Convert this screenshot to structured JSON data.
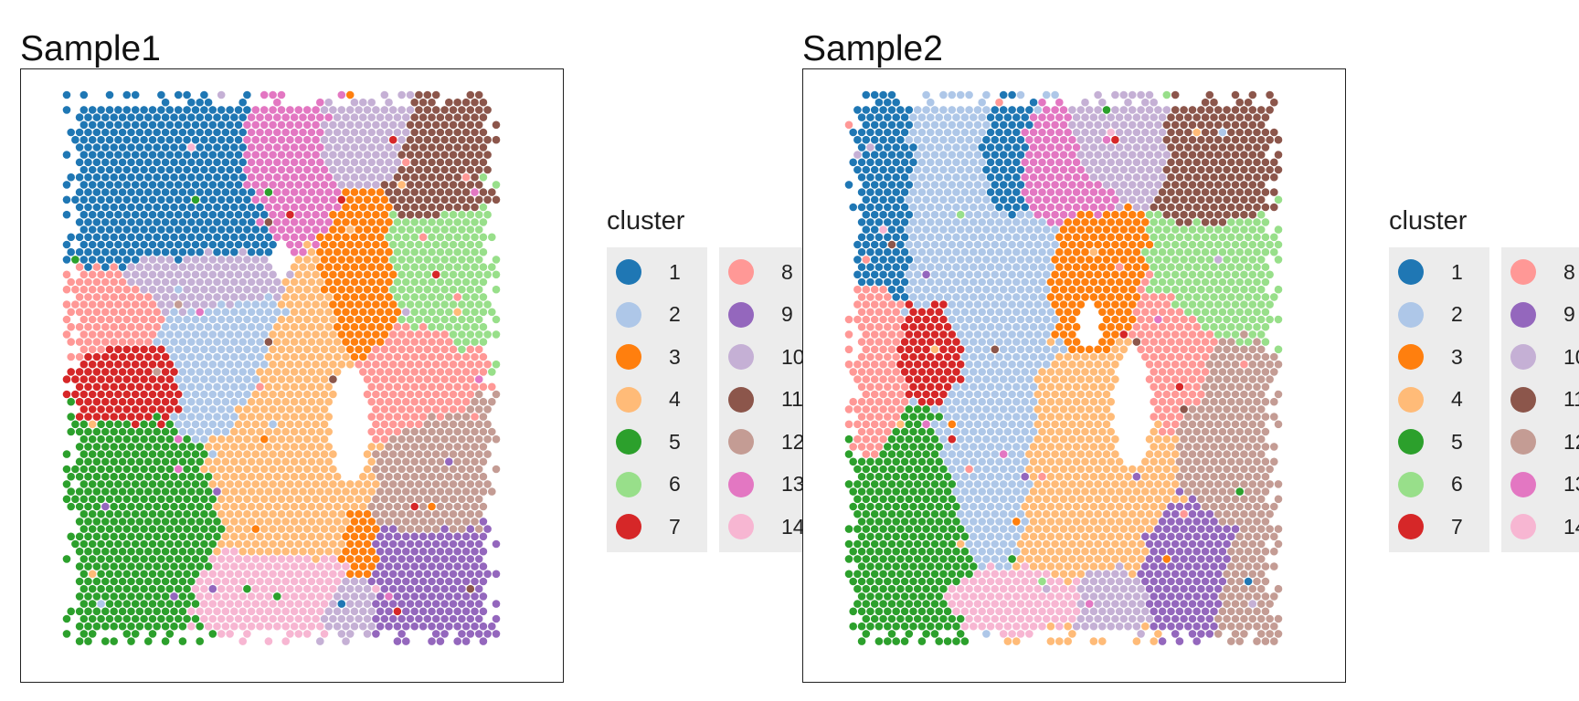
{
  "legend_title": "cluster",
  "clusters": [
    {
      "label": "1",
      "color": "#1f77b4"
    },
    {
      "label": "2",
      "color": "#aec7e8"
    },
    {
      "label": "3",
      "color": "#ff7f0e"
    },
    {
      "label": "4",
      "color": "#ffbb78"
    },
    {
      "label": "5",
      "color": "#2ca02c"
    },
    {
      "label": "6",
      "color": "#98df8a"
    },
    {
      "label": "7",
      "color": "#d62728"
    },
    {
      "label": "8",
      "color": "#ff9896"
    },
    {
      "label": "9",
      "color": "#9467bd"
    },
    {
      "label": "10",
      "color": "#c5b0d5"
    },
    {
      "label": "11",
      "color": "#8c564b"
    },
    {
      "label": "12",
      "color": "#c49c94"
    },
    {
      "label": "13",
      "color": "#e377c2"
    },
    {
      "label": "14",
      "color": "#f7b6d2"
    }
  ],
  "chart_data": [
    {
      "type": "scatter",
      "title": "Sample1",
      "xlabel": "",
      "ylabel": "",
      "grid": false,
      "legend": "right",
      "regions": [
        {
          "cluster": "1",
          "center": [
            0.24,
            0.14
          ],
          "radius": [
            0.18,
            0.13
          ]
        },
        {
          "cluster": "13",
          "center": [
            0.52,
            0.12
          ],
          "radius": [
            0.1,
            0.09
          ]
        },
        {
          "cluster": "10",
          "center": [
            0.68,
            0.1
          ],
          "radius": [
            0.1,
            0.06
          ]
        },
        {
          "cluster": "3",
          "center": [
            0.7,
            0.32
          ],
          "radius": [
            0.06,
            0.14
          ]
        },
        {
          "cluster": "11",
          "center": [
            0.84,
            0.16
          ],
          "radius": [
            0.08,
            0.08
          ]
        },
        {
          "cluster": "6",
          "center": [
            0.85,
            0.3
          ],
          "radius": [
            0.1,
            0.1
          ]
        },
        {
          "cluster": "10",
          "center": [
            0.3,
            0.35
          ],
          "radius": [
            0.14,
            0.05
          ]
        },
        {
          "cluster": "8",
          "center": [
            0.12,
            0.4
          ],
          "radius": [
            0.1,
            0.06
          ]
        },
        {
          "cluster": "2",
          "center": [
            0.35,
            0.47
          ],
          "radius": [
            0.13,
            0.12
          ]
        },
        {
          "cluster": "7",
          "center": [
            0.18,
            0.52
          ],
          "radius": [
            0.1,
            0.07
          ]
        },
        {
          "cluster": "4",
          "center": [
            0.52,
            0.62
          ],
          "radius": [
            0.13,
            0.18
          ]
        },
        {
          "cluster": "8",
          "center": [
            0.78,
            0.52
          ],
          "radius": [
            0.09,
            0.09
          ]
        },
        {
          "cluster": "12",
          "center": [
            0.84,
            0.7
          ],
          "radius": [
            0.08,
            0.1
          ]
        },
        {
          "cluster": "5",
          "center": [
            0.18,
            0.76
          ],
          "radius": [
            0.11,
            0.14
          ]
        },
        {
          "cluster": "9",
          "center": [
            0.84,
            0.87
          ],
          "radius": [
            0.09,
            0.08
          ]
        },
        {
          "cluster": "14",
          "center": [
            0.5,
            0.9
          ],
          "radius": [
            0.14,
            0.05
          ]
        },
        {
          "cluster": "10",
          "center": [
            0.65,
            0.92
          ],
          "radius": [
            0.05,
            0.04
          ]
        },
        {
          "cluster": "3",
          "center": [
            0.68,
            0.82
          ],
          "radius": [
            0.03,
            0.05
          ]
        }
      ]
    },
    {
      "type": "scatter",
      "title": "Sample2",
      "xlabel": "",
      "ylabel": "",
      "grid": false,
      "legend": "right",
      "regions": [
        {
          "cluster": "1",
          "center": [
            0.08,
            0.25
          ],
          "radius": [
            0.07,
            0.2
          ]
        },
        {
          "cluster": "2",
          "center": [
            0.28,
            0.3
          ],
          "radius": [
            0.16,
            0.24
          ]
        },
        {
          "cluster": "1",
          "center": [
            0.36,
            0.14
          ],
          "radius": [
            0.06,
            0.12
          ]
        },
        {
          "cluster": "13",
          "center": [
            0.48,
            0.14
          ],
          "radius": [
            0.1,
            0.08
          ]
        },
        {
          "cluster": "10",
          "center": [
            0.6,
            0.1
          ],
          "radius": [
            0.1,
            0.06
          ]
        },
        {
          "cluster": "11",
          "center": [
            0.85,
            0.14
          ],
          "radius": [
            0.08,
            0.1
          ]
        },
        {
          "cluster": "6",
          "center": [
            0.86,
            0.33
          ],
          "radius": [
            0.1,
            0.1
          ]
        },
        {
          "cluster": "3",
          "center": [
            0.56,
            0.34
          ],
          "radius": [
            0.08,
            0.1
          ]
        },
        {
          "cluster": "8",
          "center": [
            0.07,
            0.45
          ],
          "radius": [
            0.06,
            0.2
          ]
        },
        {
          "cluster": "7",
          "center": [
            0.2,
            0.45
          ],
          "radius": [
            0.1,
            0.1
          ]
        },
        {
          "cluster": "2",
          "center": [
            0.32,
            0.65
          ],
          "radius": [
            0.12,
            0.16
          ]
        },
        {
          "cluster": "8",
          "center": [
            0.76,
            0.48
          ],
          "radius": [
            0.08,
            0.1
          ]
        },
        {
          "cluster": "12",
          "center": [
            0.88,
            0.62
          ],
          "radius": [
            0.08,
            0.14
          ]
        },
        {
          "cluster": "4",
          "center": [
            0.55,
            0.7
          ],
          "radius": [
            0.15,
            0.18
          ]
        },
        {
          "cluster": "5",
          "center": [
            0.16,
            0.76
          ],
          "radius": [
            0.12,
            0.16
          ]
        },
        {
          "cluster": "9",
          "center": [
            0.8,
            0.84
          ],
          "radius": [
            0.09,
            0.08
          ]
        },
        {
          "cluster": "14",
          "center": [
            0.4,
            0.91
          ],
          "radius": [
            0.15,
            0.04
          ]
        },
        {
          "cluster": "10",
          "center": [
            0.6,
            0.91
          ],
          "radius": [
            0.07,
            0.05
          ]
        },
        {
          "cluster": "12",
          "center": [
            0.92,
            0.88
          ],
          "radius": [
            0.05,
            0.07
          ]
        }
      ]
    }
  ]
}
